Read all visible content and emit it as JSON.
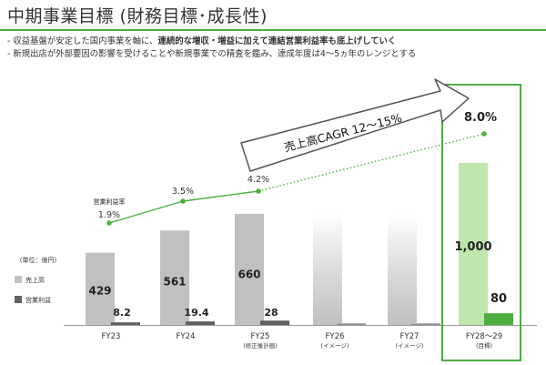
{
  "page": {
    "title": "中期事業目標 (財務目標･成長性)",
    "bullets": [
      {
        "pre": "- 収益基盤が安定した国内事業を軸に、",
        "em": "連続的な増収・増益に加えて連結営業利益率も底上げしていく",
        "post": ""
      },
      {
        "pre": "- 新規出店が外部要因の影響を受けることや新規事業での精査を鑑み、達成年度は4～5ヵ年のレンジとする",
        "em": "",
        "post": ""
      }
    ]
  },
  "colors": {
    "accent": "#4cae3f",
    "revenue_bar": "#c0c0c0",
    "profit_bar": "#606060",
    "target_revenue_bar": "#bfe6ad",
    "target_profit_bar": "#4cae3f"
  },
  "chart_data": {
    "type": "bar",
    "categories": [
      "FY23",
      "FY24",
      "FY25",
      "FY26",
      "FY27",
      "FY28～29"
    ],
    "category_notes": [
      "",
      "",
      "(修正後計画)",
      "(イメージ)",
      "(イメージ)",
      "(目標)"
    ],
    "series": [
      {
        "name": "売上高",
        "values": [
          429,
          561,
          660,
          null,
          null,
          1000
        ]
      },
      {
        "name": "営業利益",
        "values": [
          8.2,
          19.4,
          28,
          null,
          null,
          80
        ]
      }
    ],
    "value_labels": {
      "revenue": [
        "429",
        "561",
        "660",
        "",
        "",
        "1,000"
      ],
      "profit": [
        "8.2",
        "19.4",
        "28",
        "",
        "",
        "80"
      ]
    },
    "image_bars": {
      "revenue": [
        null,
        null,
        null,
        660,
        660,
        null
      ],
      "profit": [
        null,
        null,
        null,
        8.2,
        8.2,
        null
      ]
    },
    "margin_series": {
      "name": "営業利益率",
      "values": [
        1.9,
        3.5,
        4.2,
        null,
        null,
        8.0
      ],
      "labels": [
        "1.9%",
        "3.5%",
        "4.2%",
        "",
        "",
        "8.0%"
      ]
    },
    "unit_label": "(単位：億円)",
    "legend": [
      {
        "label": "売上高",
        "color": "#c0c0c0"
      },
      {
        "label": "営業利益",
        "color": "#606060"
      }
    ],
    "cagr_label": "売上高CAGR 12～15%",
    "ylim": [
      0,
      1100
    ]
  }
}
